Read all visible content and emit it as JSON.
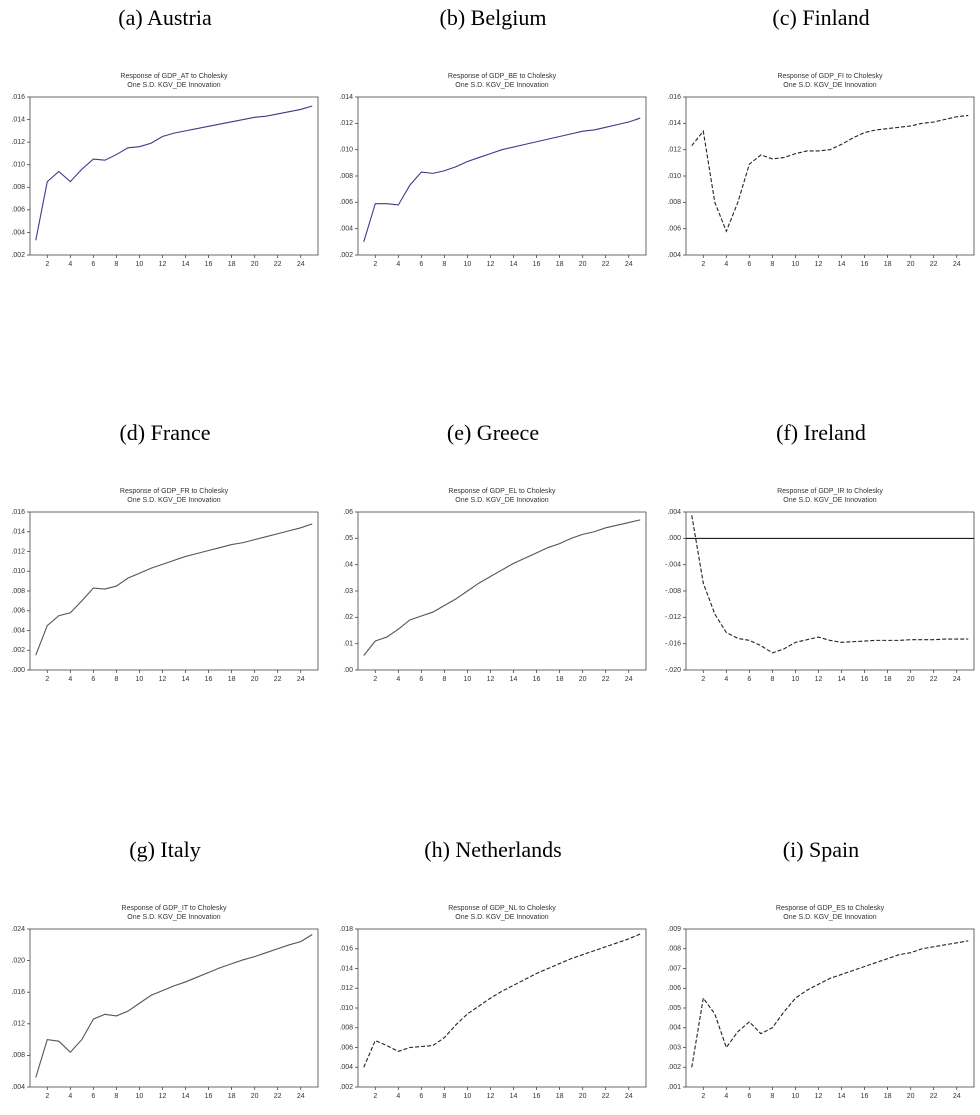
{
  "chart_data": [
    {
      "type": "line",
      "caption": "(a) Austria",
      "title": "Response of GDP_AT to Cholesky",
      "subtitle": "One S.D. KGV_DE Innovation",
      "color": "#3a3a8c",
      "line_style": "solid",
      "x": [
        1,
        2,
        3,
        4,
        5,
        6,
        7,
        8,
        9,
        10,
        11,
        12,
        13,
        14,
        15,
        16,
        17,
        18,
        19,
        20,
        21,
        22,
        23,
        24,
        25
      ],
      "values": [
        0.0033,
        0.0085,
        0.0094,
        0.0085,
        0.0096,
        0.0105,
        0.0104,
        0.0109,
        0.0115,
        0.0116,
        0.0119,
        0.0125,
        0.0128,
        0.013,
        0.0132,
        0.0134,
        0.0136,
        0.0138,
        0.014,
        0.0142,
        0.0143,
        0.0145,
        0.0147,
        0.0149,
        0.0152
      ],
      "xlim": [
        0.5,
        25.5
      ],
      "xticks": [
        2,
        4,
        6,
        8,
        10,
        12,
        14,
        16,
        18,
        20,
        22,
        24
      ],
      "ylim": [
        0.002,
        0.016
      ],
      "yticks": [
        {
          "value": 0.002,
          "label": ".002"
        },
        {
          "value": 0.004,
          "label": ".004"
        },
        {
          "value": 0.006,
          "label": ".006"
        },
        {
          "value": 0.008,
          "label": ".008"
        },
        {
          "value": 0.01,
          "label": ".010"
        },
        {
          "value": 0.012,
          "label": ".012"
        },
        {
          "value": 0.014,
          "label": ".014"
        },
        {
          "value": 0.016,
          "label": ".016"
        }
      ]
    },
    {
      "type": "line",
      "caption": "(b) Belgium",
      "title": "Response of GDP_BE to Cholesky",
      "subtitle": "One S.D. KGV_DE Innovation",
      "color": "#3a3a8c",
      "line_style": "solid",
      "x": [
        1,
        2,
        3,
        4,
        5,
        6,
        7,
        8,
        9,
        10,
        11,
        12,
        13,
        14,
        15,
        16,
        17,
        18,
        19,
        20,
        21,
        22,
        23,
        24,
        25
      ],
      "values": [
        0.003,
        0.0059,
        0.0059,
        0.0058,
        0.0073,
        0.0083,
        0.0082,
        0.0084,
        0.0087,
        0.0091,
        0.0094,
        0.0097,
        0.01,
        0.0102,
        0.0104,
        0.0106,
        0.0108,
        0.011,
        0.0112,
        0.0114,
        0.0115,
        0.0117,
        0.0119,
        0.0121,
        0.0124
      ],
      "xlim": [
        0.5,
        25.5
      ],
      "xticks": [
        2,
        4,
        6,
        8,
        10,
        12,
        14,
        16,
        18,
        20,
        22,
        24
      ],
      "ylim": [
        0.002,
        0.014
      ],
      "yticks": [
        {
          "value": 0.002,
          "label": ".002"
        },
        {
          "value": 0.004,
          "label": ".004"
        },
        {
          "value": 0.006,
          "label": ".006"
        },
        {
          "value": 0.008,
          "label": ".008"
        },
        {
          "value": 0.01,
          "label": ".010"
        },
        {
          "value": 0.012,
          "label": ".012"
        },
        {
          "value": 0.014,
          "label": ".014"
        }
      ]
    },
    {
      "type": "line",
      "caption": "(c) Finland",
      "title": "Response of GDP_FI to Cholesky",
      "subtitle": "One S.D. KGV_DE Innovation",
      "color": "#222222",
      "line_style": "dashed",
      "x": [
        1,
        2,
        3,
        4,
        5,
        6,
        7,
        8,
        9,
        10,
        11,
        12,
        13,
        14,
        15,
        16,
        17,
        18,
        19,
        20,
        21,
        22,
        23,
        24,
        25
      ],
      "values": [
        0.0123,
        0.0134,
        0.008,
        0.0058,
        0.008,
        0.0109,
        0.0116,
        0.0113,
        0.0114,
        0.0117,
        0.0119,
        0.0119,
        0.012,
        0.0124,
        0.0129,
        0.0133,
        0.0135,
        0.0136,
        0.0137,
        0.0138,
        0.014,
        0.0141,
        0.0143,
        0.0145,
        0.0146
      ],
      "xlim": [
        0.5,
        25.5
      ],
      "xticks": [
        2,
        4,
        6,
        8,
        10,
        12,
        14,
        16,
        18,
        20,
        22,
        24
      ],
      "ylim": [
        0.004,
        0.016
      ],
      "yticks": [
        {
          "value": 0.004,
          "label": ".004"
        },
        {
          "value": 0.006,
          "label": ".006"
        },
        {
          "value": 0.008,
          "label": ".008"
        },
        {
          "value": 0.01,
          "label": ".010"
        },
        {
          "value": 0.012,
          "label": ".012"
        },
        {
          "value": 0.014,
          "label": ".014"
        },
        {
          "value": 0.016,
          "label": ".016"
        }
      ]
    },
    {
      "type": "line",
      "caption": "(d) France",
      "title": "Response of GDP_FR to Cholesky",
      "subtitle": "One S.D. KGV_DE Innovation",
      "color": "#555555",
      "line_style": "solid",
      "x": [
        1,
        2,
        3,
        4,
        5,
        6,
        7,
        8,
        9,
        10,
        11,
        12,
        13,
        14,
        15,
        16,
        17,
        18,
        19,
        20,
        21,
        22,
        23,
        24,
        25
      ],
      "values": [
        0.0015,
        0.0045,
        0.0055,
        0.0058,
        0.007,
        0.0083,
        0.0082,
        0.0085,
        0.0093,
        0.0098,
        0.0103,
        0.0107,
        0.0111,
        0.0115,
        0.0118,
        0.0121,
        0.0124,
        0.0127,
        0.0129,
        0.0132,
        0.0135,
        0.0138,
        0.0141,
        0.0144,
        0.0148
      ],
      "xlim": [
        0.5,
        25.5
      ],
      "xticks": [
        2,
        4,
        6,
        8,
        10,
        12,
        14,
        16,
        18,
        20,
        22,
        24
      ],
      "ylim": [
        0,
        0.016
      ],
      "yticks": [
        {
          "value": 0,
          "label": ".000"
        },
        {
          "value": 0.002,
          "label": ".002"
        },
        {
          "value": 0.004,
          "label": ".004"
        },
        {
          "value": 0.006,
          "label": ".006"
        },
        {
          "value": 0.008,
          "label": ".008"
        },
        {
          "value": 0.01,
          "label": ".010"
        },
        {
          "value": 0.012,
          "label": ".012"
        },
        {
          "value": 0.014,
          "label": ".014"
        },
        {
          "value": 0.016,
          "label": ".016"
        }
      ]
    },
    {
      "type": "line",
      "caption": "(e) Greece",
      "title": "Response of GDP_EL to Cholesky",
      "subtitle": "One S.D. KGV_DE Innovation",
      "color": "#555555",
      "line_style": "solid",
      "x": [
        1,
        2,
        3,
        4,
        5,
        6,
        7,
        8,
        9,
        10,
        11,
        12,
        13,
        14,
        15,
        16,
        17,
        18,
        19,
        20,
        21,
        22,
        23,
        24,
        25
      ],
      "values": [
        0.0055,
        0.011,
        0.0125,
        0.0155,
        0.019,
        0.0205,
        0.022,
        0.0245,
        0.027,
        0.03,
        0.033,
        0.0355,
        0.038,
        0.0405,
        0.0425,
        0.0445,
        0.0465,
        0.048,
        0.05,
        0.0515,
        0.0525,
        0.054,
        0.055,
        0.056,
        0.057
      ],
      "xlim": [
        0.5,
        25.5
      ],
      "xticks": [
        2,
        4,
        6,
        8,
        10,
        12,
        14,
        16,
        18,
        20,
        22,
        24
      ],
      "ylim": [
        0,
        0.06
      ],
      "yticks": [
        {
          "value": 0,
          "label": ".00"
        },
        {
          "value": 0.01,
          "label": ".01"
        },
        {
          "value": 0.02,
          "label": ".02"
        },
        {
          "value": 0.03,
          "label": ".03"
        },
        {
          "value": 0.04,
          "label": ".04"
        },
        {
          "value": 0.05,
          "label": ".05"
        },
        {
          "value": 0.06,
          "label": ".06"
        }
      ]
    },
    {
      "type": "line",
      "caption": "(f) Ireland",
      "title": "Response of GDP_IR to Cholesky",
      "subtitle": "One S.D. KGV_DE Innovation",
      "color": "#222222",
      "line_style": "dashed",
      "zero_line": true,
      "x": [
        1,
        2,
        3,
        4,
        5,
        6,
        7,
        8,
        9,
        10,
        11,
        12,
        13,
        14,
        15,
        16,
        17,
        18,
        19,
        20,
        21,
        22,
        23,
        24,
        25
      ],
      "values": [
        0.0035,
        -0.0068,
        -0.0115,
        -0.0143,
        -0.0152,
        -0.0155,
        -0.0163,
        -0.0174,
        -0.0168,
        -0.0158,
        -0.0154,
        -0.015,
        -0.0155,
        -0.0158,
        -0.0157,
        -0.0156,
        -0.0155,
        -0.0155,
        -0.0155,
        -0.0154,
        -0.0154,
        -0.0154,
        -0.0153,
        -0.0153,
        -0.0153
      ],
      "xlim": [
        0.5,
        25.5
      ],
      "xticks": [
        2,
        4,
        6,
        8,
        10,
        12,
        14,
        16,
        18,
        20,
        22,
        24
      ],
      "ylim": [
        -0.02,
        0.004
      ],
      "yticks": [
        {
          "value": -0.02,
          "label": "-.020"
        },
        {
          "value": -0.016,
          "label": "-.016"
        },
        {
          "value": -0.012,
          "label": "-.012"
        },
        {
          "value": -0.008,
          "label": "-.008"
        },
        {
          "value": -0.004,
          "label": "-.004"
        },
        {
          "value": 0,
          "label": ".000"
        },
        {
          "value": 0.004,
          "label": ".004"
        }
      ]
    },
    {
      "type": "line",
      "caption": "(g) Italy",
      "title": "Response of GDP_IT to Cholesky",
      "subtitle": "One S.D. KGV_DE Innovation",
      "color": "#555555",
      "line_style": "solid",
      "x": [
        1,
        2,
        3,
        4,
        5,
        6,
        7,
        8,
        9,
        10,
        11,
        12,
        13,
        14,
        15,
        16,
        17,
        18,
        19,
        20,
        21,
        22,
        23,
        24,
        25
      ],
      "values": [
        0.0052,
        0.01,
        0.0098,
        0.0084,
        0.01,
        0.0126,
        0.0132,
        0.013,
        0.0136,
        0.0146,
        0.0156,
        0.0162,
        0.0168,
        0.0173,
        0.0179,
        0.0185,
        0.0191,
        0.0196,
        0.0201,
        0.0205,
        0.021,
        0.0215,
        0.022,
        0.0224,
        0.0233
      ],
      "xlim": [
        0.5,
        25.5
      ],
      "xticks": [
        2,
        4,
        6,
        8,
        10,
        12,
        14,
        16,
        18,
        20,
        22,
        24
      ],
      "ylim": [
        0.004,
        0.024
      ],
      "yticks": [
        {
          "value": 0.004,
          "label": ".004"
        },
        {
          "value": 0.008,
          "label": ".008"
        },
        {
          "value": 0.012,
          "label": ".012"
        },
        {
          "value": 0.016,
          "label": ".016"
        },
        {
          "value": 0.02,
          "label": ".020"
        },
        {
          "value": 0.024,
          "label": ".024"
        }
      ]
    },
    {
      "type": "line",
      "caption": "(h) Netherlands",
      "title": "Response of GDP_NL to Cholesky",
      "subtitle": "One S.D. KGV_DE Innovation",
      "color": "#222222",
      "line_style": "dashed",
      "x": [
        1,
        2,
        3,
        4,
        5,
        6,
        7,
        8,
        9,
        10,
        11,
        12,
        13,
        14,
        15,
        16,
        17,
        18,
        19,
        20,
        21,
        22,
        23,
        24,
        25
      ],
      "values": [
        0.004,
        0.0067,
        0.0062,
        0.0056,
        0.006,
        0.0061,
        0.0062,
        0.007,
        0.0083,
        0.0094,
        0.0102,
        0.011,
        0.0117,
        0.0123,
        0.0129,
        0.0135,
        0.014,
        0.0145,
        0.015,
        0.0154,
        0.0158,
        0.0162,
        0.0166,
        0.017,
        0.0175
      ],
      "xlim": [
        0.5,
        25.5
      ],
      "xticks": [
        2,
        4,
        6,
        8,
        10,
        12,
        14,
        16,
        18,
        20,
        22,
        24
      ],
      "ylim": [
        0.002,
        0.018
      ],
      "yticks": [
        {
          "value": 0.002,
          "label": ".002"
        },
        {
          "value": 0.004,
          "label": ".004"
        },
        {
          "value": 0.006,
          "label": ".006"
        },
        {
          "value": 0.008,
          "label": ".008"
        },
        {
          "value": 0.01,
          "label": ".010"
        },
        {
          "value": 0.012,
          "label": ".012"
        },
        {
          "value": 0.014,
          "label": ".014"
        },
        {
          "value": 0.016,
          "label": ".016"
        },
        {
          "value": 0.018,
          "label": ".018"
        }
      ]
    },
    {
      "type": "line",
      "caption": "(i) Spain",
      "title": "Response of GDP_ES to Cholesky",
      "subtitle": "One S.D. KGV_DE Innovation",
      "color": "#222222",
      "line_style": "dashed",
      "x": [
        1,
        2,
        3,
        4,
        5,
        6,
        7,
        8,
        9,
        10,
        11,
        12,
        13,
        14,
        15,
        16,
        17,
        18,
        19,
        20,
        21,
        22,
        23,
        24,
        25
      ],
      "values": [
        0.002,
        0.0055,
        0.0047,
        0.003,
        0.0038,
        0.0043,
        0.0037,
        0.004,
        0.0048,
        0.0055,
        0.0059,
        0.0062,
        0.0065,
        0.0067,
        0.0069,
        0.0071,
        0.0073,
        0.0075,
        0.0077,
        0.0078,
        0.008,
        0.0081,
        0.0082,
        0.0083,
        0.0084
      ],
      "xlim": [
        0.5,
        25.5
      ],
      "xticks": [
        2,
        4,
        6,
        8,
        10,
        12,
        14,
        16,
        18,
        20,
        22,
        24
      ],
      "ylim": [
        0.001,
        0.009
      ],
      "yticks": [
        {
          "value": 0.001,
          "label": ".001"
        },
        {
          "value": 0.002,
          "label": ".002"
        },
        {
          "value": 0.003,
          "label": ".003"
        },
        {
          "value": 0.004,
          "label": ".004"
        },
        {
          "value": 0.005,
          "label": ".005"
        },
        {
          "value": 0.006,
          "label": ".006"
        },
        {
          "value": 0.007,
          "label": ".007"
        },
        {
          "value": 0.008,
          "label": ".008"
        },
        {
          "value": 0.009,
          "label": ".009"
        }
      ]
    }
  ]
}
